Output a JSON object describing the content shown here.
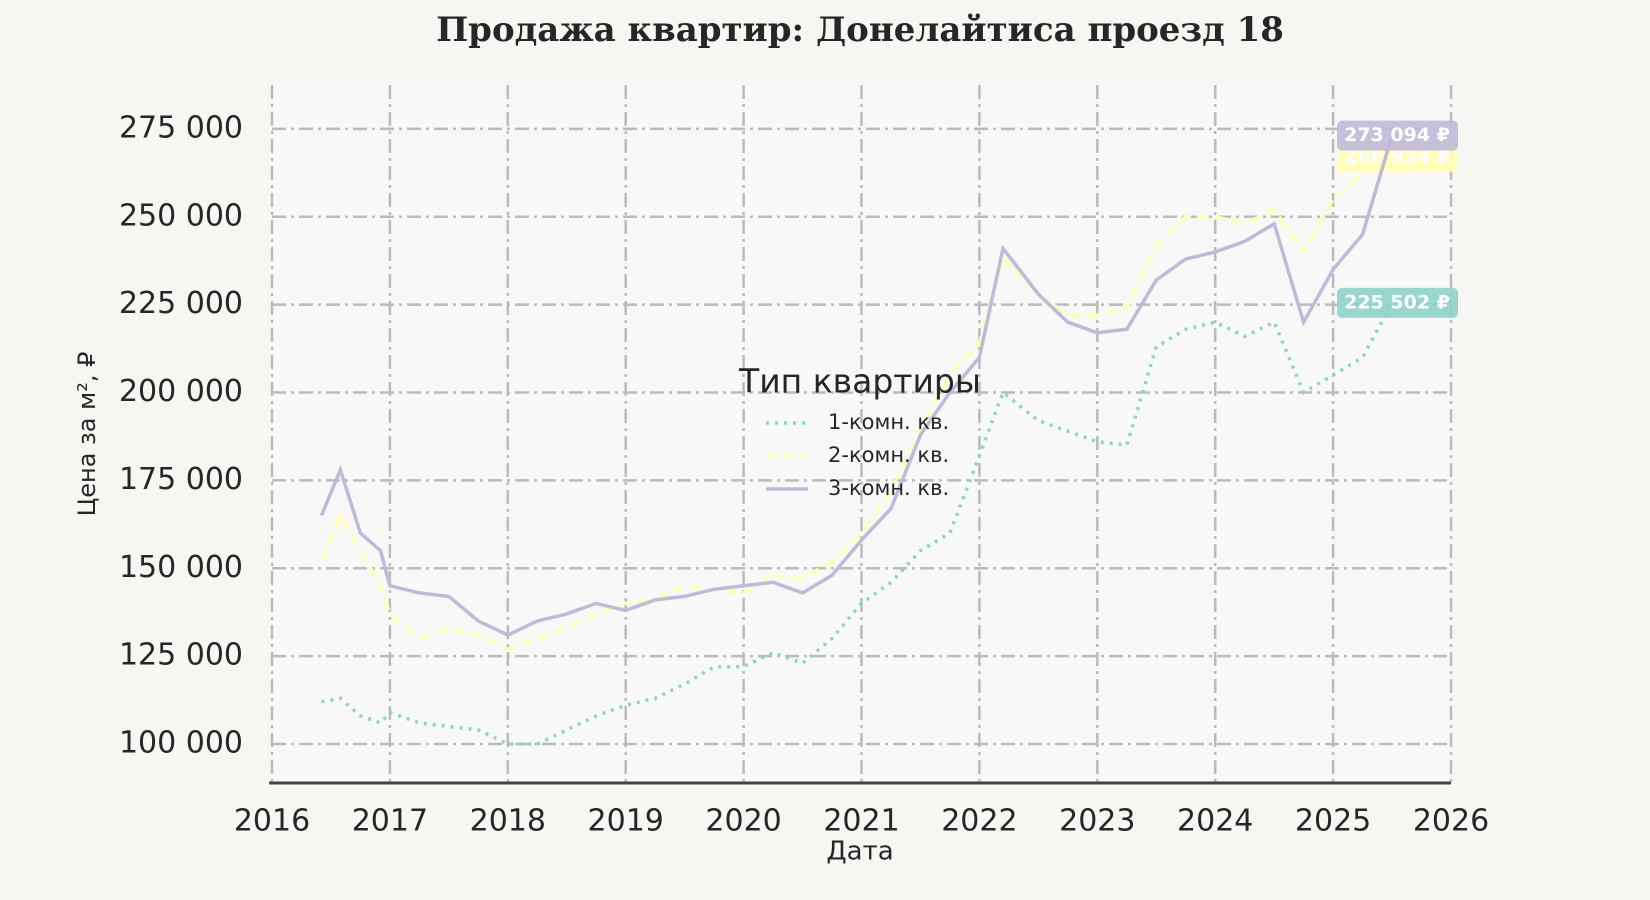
{
  "chart_data": {
    "type": "line",
    "title": "Продажа квартир: Донелайтиса проезд 18",
    "xlabel": "Дата",
    "ylabel": "Цена за м², ₽",
    "legend_title": "Тип квартиры",
    "legend": "center",
    "grid": true,
    "x": [
      2016.42,
      2016.58,
      2016.75,
      2016.92,
      2017.0,
      2017.25,
      2017.5,
      2017.75,
      2018.0,
      2018.25,
      2018.5,
      2018.75,
      2019.0,
      2019.25,
      2019.5,
      2019.75,
      2020.0,
      2020.25,
      2020.5,
      2020.75,
      2021.0,
      2021.25,
      2021.5,
      2021.75,
      2022.0,
      2022.2,
      2022.5,
      2022.75,
      2023.0,
      2023.25,
      2023.5,
      2023.75,
      2024.0,
      2024.25,
      2024.5,
      2024.75,
      2025.0,
      2025.25,
      2025.5
    ],
    "series": [
      {
        "name": "1-комн. кв.",
        "color": "#8dd3c7",
        "dash": "dotted",
        "last_value_label": "225 502 ₽",
        "values": [
          112000,
          113000,
          108000,
          106000,
          109000,
          106000,
          105000,
          104000,
          100000,
          100000,
          104000,
          108000,
          111000,
          113000,
          117000,
          122000,
          122000,
          126000,
          123000,
          130000,
          140000,
          146000,
          155000,
          160000,
          182000,
          200000,
          192000,
          189000,
          186000,
          185000,
          213000,
          218000,
          220000,
          216000,
          220000,
          200000,
          205000,
          210000,
          225502
        ]
      },
      {
        "name": "2-комн. кв.",
        "color": "#ffffb3",
        "dash": "dashed",
        "last_value_label": "266 934 ₽",
        "values": [
          152000,
          165000,
          155000,
          145000,
          137000,
          130000,
          133000,
          131000,
          127000,
          130000,
          133000,
          137000,
          140000,
          141000,
          145000,
          144000,
          143000,
          148000,
          147000,
          152000,
          160000,
          172000,
          190000,
          205000,
          214000,
          238000,
          228000,
          222000,
          222000,
          224000,
          242000,
          250000,
          250000,
          248000,
          252000,
          240000,
          255000,
          262000,
          266934
        ]
      },
      {
        "name": "3-комн. кв.",
        "color": "#bebada",
        "dash": "solid",
        "last_value_label": "273 094 ₽",
        "values": [
          165000,
          178000,
          160000,
          155000,
          145000,
          143000,
          142000,
          135000,
          131000,
          135000,
          137000,
          140000,
          138000,
          141000,
          142000,
          144000,
          145000,
          146000,
          143000,
          148000,
          158000,
          167000,
          188000,
          200000,
          210000,
          241000,
          228000,
          220000,
          217000,
          218000,
          232000,
          238000,
          240000,
          243000,
          248000,
          220000,
          235000,
          245000,
          273094
        ]
      }
    ],
    "xlim": [
      2016,
      2026
    ],
    "xticks": [
      2016,
      2017,
      2018,
      2019,
      2020,
      2021,
      2022,
      2023,
      2024,
      2025,
      2026
    ],
    "ylim": [
      88900,
      287500
    ],
    "yticks": [
      {
        "value": 100000,
        "label": "100 000"
      },
      {
        "value": 125000,
        "label": "125 000"
      },
      {
        "value": 150000,
        "label": "150 000"
      },
      {
        "value": 175000,
        "label": "175 000"
      },
      {
        "value": 200000,
        "label": "200 000"
      },
      {
        "value": 225000,
        "label": "225 000"
      },
      {
        "value": 250000,
        "label": "250 000"
      },
      {
        "value": 275000,
        "label": "275 000"
      }
    ]
  }
}
